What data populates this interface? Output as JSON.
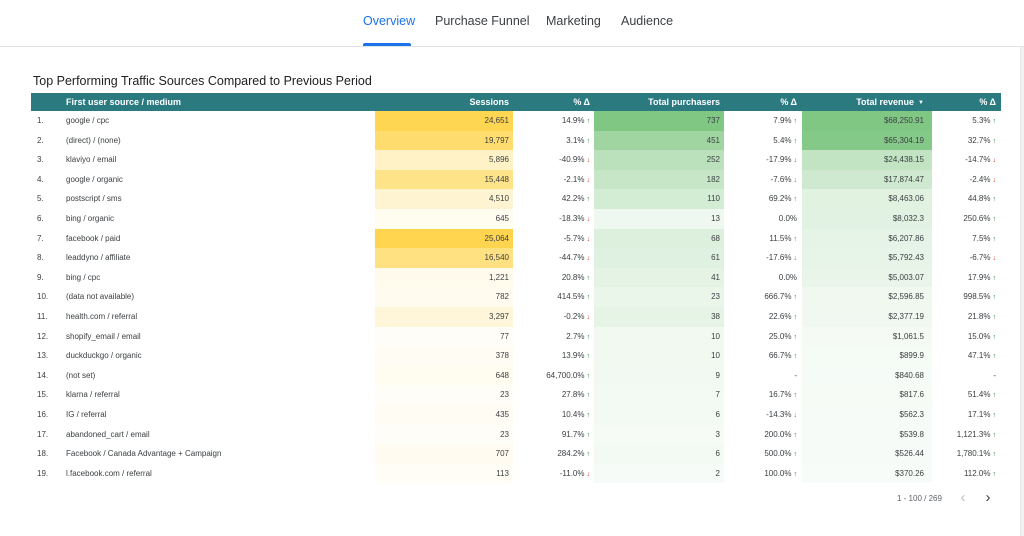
{
  "nav": {
    "tabs": [
      {
        "label": "Overview",
        "active": true
      },
      {
        "label": "Purchase Funnel",
        "active": false
      },
      {
        "label": "Marketing",
        "active": false
      },
      {
        "label": "Audience",
        "active": false
      }
    ]
  },
  "report": {
    "title": "Top Performing Traffic Sources Compared to Previous Period"
  },
  "table": {
    "headers": {
      "source": "First user source / medium",
      "sessions": "Sessions",
      "sessions_delta": "% Δ",
      "purchasers": "Total purchasers",
      "purchasers_delta": "% Δ",
      "revenue": "Total revenue",
      "revenue_delta": "% Δ"
    },
    "sort_icon": "caret-down-icon",
    "rows": [
      {
        "num": "1.",
        "source": "google / cpc",
        "sessions": "24,651",
        "sessions_delta": "14.9%",
        "sessions_dir": "up",
        "purchasers": "737",
        "purchasers_delta": "7.9%",
        "purchasers_dir": "up",
        "revenue": "$68,250.91",
        "revenue_delta": "5.3%",
        "revenue_dir": "up",
        "sessions_value": 24651,
        "purchasers_value": 737,
        "revenue_value": 68250.91
      },
      {
        "num": "2.",
        "source": "(direct) / (none)",
        "sessions": "19,797",
        "sessions_delta": "3.1%",
        "sessions_dir": "up",
        "purchasers": "451",
        "purchasers_delta": "5.4%",
        "purchasers_dir": "up",
        "revenue": "$65,304.19",
        "revenue_delta": "32.7%",
        "revenue_dir": "up",
        "sessions_value": 19797,
        "purchasers_value": 451,
        "revenue_value": 65304.19
      },
      {
        "num": "3.",
        "source": "klaviyo / email",
        "sessions": "5,896",
        "sessions_delta": "-40.9%",
        "sessions_dir": "down",
        "purchasers": "252",
        "purchasers_delta": "-17.9%",
        "purchasers_dir": "down",
        "revenue": "$24,438.15",
        "revenue_delta": "-14.7%",
        "revenue_dir": "down",
        "sessions_value": 5896,
        "purchasers_value": 252,
        "revenue_value": 24438.15
      },
      {
        "num": "4.",
        "source": "google / organic",
        "sessions": "15,448",
        "sessions_delta": "-2.1%",
        "sessions_dir": "down",
        "purchasers": "182",
        "purchasers_delta": "-7.6%",
        "purchasers_dir": "down",
        "revenue": "$17,874.47",
        "revenue_delta": "-2.4%",
        "revenue_dir": "down",
        "sessions_value": 15448,
        "purchasers_value": 182,
        "revenue_value": 17874.47
      },
      {
        "num": "5.",
        "source": "postscript / sms",
        "sessions": "4,510",
        "sessions_delta": "42.2%",
        "sessions_dir": "up",
        "purchasers": "110",
        "purchasers_delta": "69.2%",
        "purchasers_dir": "up",
        "revenue": "$8,463.06",
        "revenue_delta": "44.8%",
        "revenue_dir": "up",
        "sessions_value": 4510,
        "purchasers_value": 110,
        "revenue_value": 8463.06
      },
      {
        "num": "6.",
        "source": "bing / organic",
        "sessions": "645",
        "sessions_delta": "-18.3%",
        "sessions_dir": "down",
        "purchasers": "13",
        "purchasers_delta": "0.0%",
        "purchasers_dir": "none",
        "revenue": "$8,032.3",
        "revenue_delta": "250.6%",
        "revenue_dir": "up",
        "sessions_value": 645,
        "purchasers_value": 13,
        "revenue_value": 8032.3
      },
      {
        "num": "7.",
        "source": "facebook / paid",
        "sessions": "25,064",
        "sessions_delta": "-5.7%",
        "sessions_dir": "down",
        "purchasers": "68",
        "purchasers_delta": "11.5%",
        "purchasers_dir": "up",
        "revenue": "$6,207.86",
        "revenue_delta": "7.5%",
        "revenue_dir": "up",
        "sessions_value": 25064,
        "purchasers_value": 68,
        "revenue_value": 6207.86
      },
      {
        "num": "8.",
        "source": "leaddyno / affiliate",
        "sessions": "16,540",
        "sessions_delta": "-44.7%",
        "sessions_dir": "down",
        "purchasers": "61",
        "purchasers_delta": "-17.6%",
        "purchasers_dir": "down",
        "revenue": "$5,792.43",
        "revenue_delta": "-6.7%",
        "revenue_dir": "down",
        "sessions_value": 16540,
        "purchasers_value": 61,
        "revenue_value": 5792.43
      },
      {
        "num": "9.",
        "source": "bing / cpc",
        "sessions": "1,221",
        "sessions_delta": "20.8%",
        "sessions_dir": "up",
        "purchasers": "41",
        "purchasers_delta": "0.0%",
        "purchasers_dir": "none",
        "revenue": "$5,003.07",
        "revenue_delta": "17.9%",
        "revenue_dir": "up",
        "sessions_value": 1221,
        "purchasers_value": 41,
        "revenue_value": 5003.07
      },
      {
        "num": "10.",
        "source": "(data not available)",
        "sessions": "782",
        "sessions_delta": "414.5%",
        "sessions_dir": "up",
        "purchasers": "23",
        "purchasers_delta": "666.7%",
        "purchasers_dir": "up",
        "revenue": "$2,596.85",
        "revenue_delta": "998.5%",
        "revenue_dir": "up",
        "sessions_value": 782,
        "purchasers_value": 23,
        "revenue_value": 2596.85
      },
      {
        "num": "11.",
        "source": "health.com / referral",
        "sessions": "3,297",
        "sessions_delta": "-0.2%",
        "sessions_dir": "down",
        "purchasers": "38",
        "purchasers_delta": "22.6%",
        "purchasers_dir": "up",
        "revenue": "$2,377.19",
        "revenue_delta": "21.8%",
        "revenue_dir": "up",
        "sessions_value": 3297,
        "purchasers_value": 38,
        "revenue_value": 2377.19
      },
      {
        "num": "12.",
        "source": "shopify_email / email",
        "sessions": "77",
        "sessions_delta": "2.7%",
        "sessions_dir": "up",
        "purchasers": "10",
        "purchasers_delta": "25.0%",
        "purchasers_dir": "up",
        "revenue": "$1,061.5",
        "revenue_delta": "15.0%",
        "revenue_dir": "up",
        "sessions_value": 77,
        "purchasers_value": 10,
        "revenue_value": 1061.5
      },
      {
        "num": "13.",
        "source": "duckduckgo / organic",
        "sessions": "378",
        "sessions_delta": "13.9%",
        "sessions_dir": "up",
        "purchasers": "10",
        "purchasers_delta": "66.7%",
        "purchasers_dir": "up",
        "revenue": "$899.9",
        "revenue_delta": "47.1%",
        "revenue_dir": "up",
        "sessions_value": 378,
        "purchasers_value": 10,
        "revenue_value": 899.9
      },
      {
        "num": "14.",
        "source": "(not set)",
        "sessions": "648",
        "sessions_delta": "64,700.0%",
        "sessions_dir": "up",
        "purchasers": "9",
        "purchasers_delta": "-",
        "purchasers_dir": "none",
        "revenue": "$840.68",
        "revenue_delta": "-",
        "revenue_dir": "none",
        "sessions_value": 648,
        "purchasers_value": 9,
        "revenue_value": 840.68
      },
      {
        "num": "15.",
        "source": "klarna / referral",
        "sessions": "23",
        "sessions_delta": "27.8%",
        "sessions_dir": "up",
        "purchasers": "7",
        "purchasers_delta": "16.7%",
        "purchasers_dir": "up",
        "revenue": "$817.6",
        "revenue_delta": "51.4%",
        "revenue_dir": "up",
        "sessions_value": 23,
        "purchasers_value": 7,
        "revenue_value": 817.6
      },
      {
        "num": "16.",
        "source": "IG / referral",
        "sessions": "435",
        "sessions_delta": "10.4%",
        "sessions_dir": "up",
        "purchasers": "6",
        "purchasers_delta": "-14.3%",
        "purchasers_dir": "down",
        "revenue": "$562.3",
        "revenue_delta": "17.1%",
        "revenue_dir": "up",
        "sessions_value": 435,
        "purchasers_value": 6,
        "revenue_value": 562.3
      },
      {
        "num": "17.",
        "source": "abandoned_cart / email",
        "sessions": "23",
        "sessions_delta": "91.7%",
        "sessions_dir": "up",
        "purchasers": "3",
        "purchasers_delta": "200.0%",
        "purchasers_dir": "up",
        "revenue": "$539.8",
        "revenue_delta": "1,121.3%",
        "revenue_dir": "up",
        "sessions_value": 23,
        "purchasers_value": 3,
        "revenue_value": 539.8
      },
      {
        "num": "18.",
        "source": "Facebook / Canada Advantage + Campaign",
        "sessions": "707",
        "sessions_delta": "284.2%",
        "sessions_dir": "up",
        "purchasers": "6",
        "purchasers_delta": "500.0%",
        "purchasers_dir": "up",
        "revenue": "$526.44",
        "revenue_delta": "1,780.1%",
        "revenue_dir": "up",
        "sessions_value": 707,
        "purchasers_value": 6,
        "revenue_value": 526.44
      },
      {
        "num": "19.",
        "source": "l.facebook.com / referral",
        "sessions": "113",
        "sessions_delta": "-11.0%",
        "sessions_dir": "down",
        "purchasers": "2",
        "purchasers_delta": "100.0%",
        "purchasers_dir": "up",
        "revenue": "$370.26",
        "revenue_delta": "112.0%",
        "revenue_dir": "up",
        "sessions_value": 113,
        "purchasers_value": 2,
        "revenue_value": 370.26
      }
    ]
  },
  "pagination": {
    "label": "1 - 100 / 269",
    "prev_icon": "chevron-left-icon",
    "next_icon": "chevron-right-icon"
  },
  "colors": {
    "header_bg": "#2a7a80",
    "accent": "#1a73e8",
    "sessions_heat": "#ffd54f",
    "purchasers_heat": "#81c784",
    "up": "#188038",
    "down": "#d93025"
  }
}
